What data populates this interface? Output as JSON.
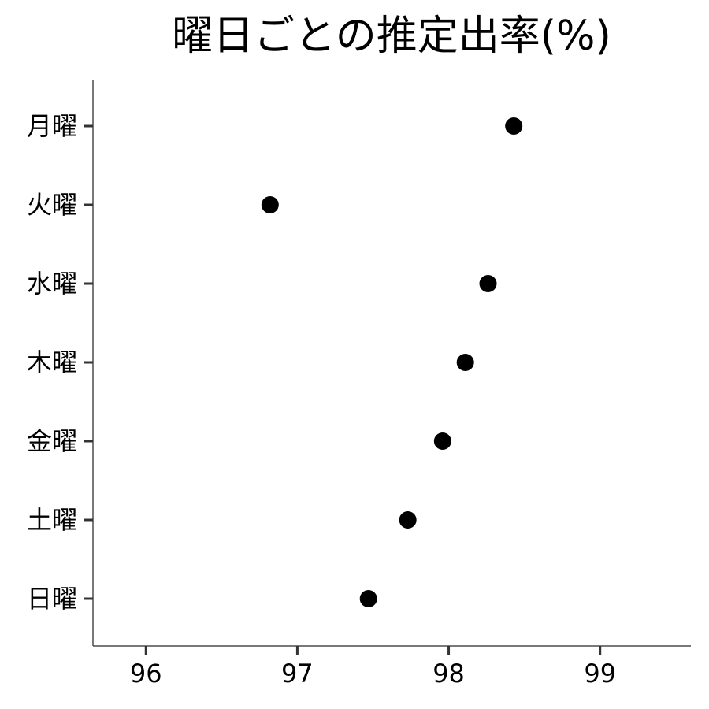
{
  "chart_data": {
    "type": "scatter",
    "title": "曜日ごとの推定出率(%)",
    "xlabel": "",
    "ylabel": "",
    "xlim": [
      95.65,
      99.6
    ],
    "x_ticks": [
      "96",
      "97",
      "98",
      "99"
    ],
    "x_tick_values": [
      96,
      97,
      98,
      99
    ],
    "categories": [
      "月曜",
      "火曜",
      "水曜",
      "木曜",
      "金曜",
      "土曜",
      "日曜"
    ],
    "values": [
      98.43,
      96.82,
      98.26,
      98.11,
      97.96,
      97.73,
      97.47
    ],
    "grid": false,
    "point_color": "#000000"
  }
}
